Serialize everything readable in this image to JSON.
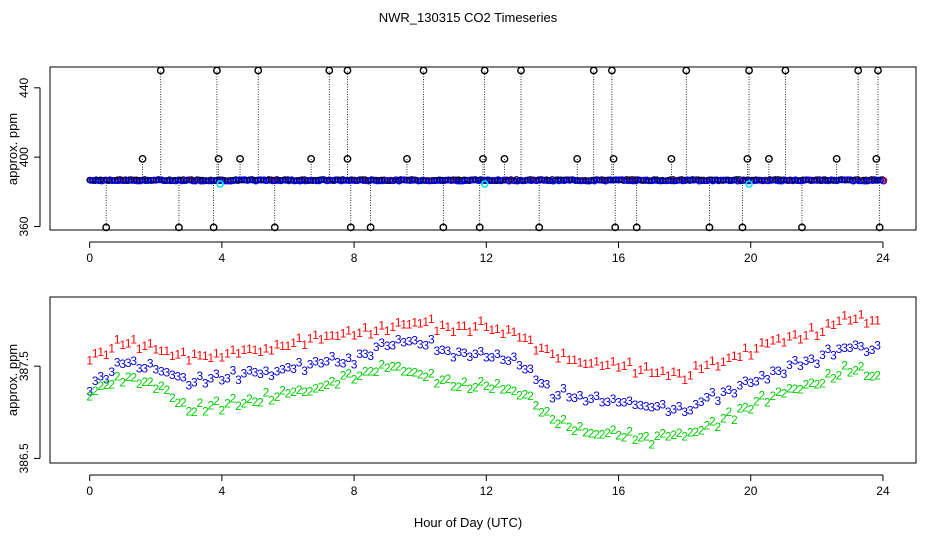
{
  "chart_data": [
    {
      "type": "scatter",
      "title": "NWR_130315  CO2 Timeseries",
      "xlabel": "",
      "ylabel": "approx. ppm",
      "xlim": [
        -1.2,
        25.0
      ],
      "ylim": [
        358.0,
        452.0
      ],
      "xticks": [
        "0",
        "4",
        "8",
        "12",
        "16",
        "20",
        "24"
      ],
      "yticks": [
        "360",
        "400",
        "440"
      ],
      "series": [
        {
          "name": "baseline_black",
          "color": "#000000",
          "marker": "o",
          "base": 386.8,
          "step": 0.0833
        },
        {
          "name": "baseline_blue",
          "color": "#0000ff",
          "marker": "o",
          "base": 386.6,
          "step": 0.0833
        },
        {
          "name": "cyan",
          "color": "#00e5ee",
          "marker": "o"
        },
        {
          "name": "red",
          "color": "#ff0000",
          "marker": "o"
        }
      ],
      "spike_times": [
        2.15,
        3.85,
        5.1,
        7.25,
        7.8,
        10.1,
        11.95,
        13.05,
        15.25,
        15.8,
        18.05,
        19.95,
        21.05,
        23.25,
        23.85
      ],
      "spike_value": 450.0,
      "mid_spike_times": [
        1.6,
        3.9,
        4.55,
        6.7,
        7.8,
        9.6,
        11.9,
        12.55,
        14.75,
        15.85,
        17.6,
        19.9,
        20.55,
        22.6,
        23.8
      ],
      "mid_spike_value": 399.0,
      "low_spike_times": [
        0.5,
        2.7,
        3.75,
        5.6,
        7.9,
        8.5,
        10.7,
        11.8,
        13.6,
        15.9,
        16.55,
        18.75,
        19.75,
        21.55,
        23.9
      ],
      "low_spike_value": 359.5,
      "cyan_times": [
        3.95,
        11.95,
        19.95
      ],
      "cyan_value": 384.5
    },
    {
      "type": "scatter",
      "title": "",
      "xlabel": "Hour of Day (UTC)",
      "ylabel": "approx. ppm",
      "xlim": [
        -1.2,
        25.0
      ],
      "ylim": [
        386.45,
        388.25
      ],
      "xticks": [
        "0",
        "4",
        "8",
        "12",
        "16",
        "20",
        "24"
      ],
      "yticks": [
        "386.5",
        "387.5"
      ],
      "series": [
        {
          "name": "1",
          "label": "1",
          "color": "#ff0000",
          "anchors": [
            [
              0,
              387.55
            ],
            [
              1,
              387.75
            ],
            [
              2,
              387.65
            ],
            [
              3,
              387.58
            ],
            [
              4,
              387.6
            ],
            [
              5,
              387.65
            ],
            [
              6,
              387.7
            ],
            [
              7,
              387.78
            ],
            [
              8,
              387.82
            ],
            [
              9,
              387.9
            ],
            [
              10,
              387.95
            ],
            [
              11,
              387.88
            ],
            [
              12,
              387.92
            ],
            [
              13,
              387.8
            ],
            [
              14,
              387.6
            ],
            [
              15,
              387.5
            ],
            [
              16,
              387.48
            ],
            [
              17,
              387.42
            ],
            [
              18,
              387.38
            ],
            [
              19,
              387.5
            ],
            [
              20,
              387.65
            ],
            [
              21,
              387.78
            ],
            [
              22,
              387.85
            ],
            [
              23,
              388.0
            ],
            [
              23.8,
              387.95
            ]
          ]
        },
        {
          "name": "3",
          "label": "3",
          "color": "#0000cd",
          "anchors": [
            [
              0,
              387.25
            ],
            [
              1,
              387.5
            ],
            [
              2,
              387.45
            ],
            [
              3,
              387.32
            ],
            [
              4,
              387.35
            ],
            [
              5,
              387.4
            ],
            [
              6,
              387.45
            ],
            [
              7,
              387.5
            ],
            [
              8,
              387.55
            ],
            [
              9,
              387.7
            ],
            [
              10,
              387.75
            ],
            [
              11,
              387.62
            ],
            [
              12,
              387.6
            ],
            [
              13,
              387.5
            ],
            [
              14,
              387.18
            ],
            [
              15,
              387.15
            ],
            [
              16,
              387.08
            ],
            [
              17,
              387.02
            ],
            [
              18,
              387.0
            ],
            [
              19,
              387.15
            ],
            [
              20,
              387.3
            ],
            [
              21,
              387.45
            ],
            [
              22,
              387.55
            ],
            [
              23,
              387.7
            ],
            [
              23.8,
              387.68
            ]
          ]
        },
        {
          "name": "2",
          "label": "2",
          "color": "#00cc00",
          "anchors": [
            [
              0,
              387.18
            ],
            [
              1,
              387.35
            ],
            [
              2,
              387.28
            ],
            [
              3,
              387.0
            ],
            [
              4,
              387.05
            ],
            [
              5,
              387.1
            ],
            [
              6,
              387.18
            ],
            [
              7,
              387.25
            ],
            [
              8,
              387.38
            ],
            [
              9,
              387.45
            ],
            [
              10,
              387.4
            ],
            [
              11,
              387.28
            ],
            [
              12,
              387.25
            ],
            [
              13,
              387.2
            ],
            [
              14,
              386.9
            ],
            [
              15,
              386.75
            ],
            [
              16,
              386.72
            ],
            [
              17,
              386.68
            ],
            [
              18,
              386.72
            ],
            [
              19,
              386.85
            ],
            [
              20,
              387.05
            ],
            [
              21,
              387.2
            ],
            [
              22,
              387.28
            ],
            [
              23,
              387.45
            ],
            [
              23.8,
              387.38
            ]
          ]
        }
      ]
    }
  ]
}
